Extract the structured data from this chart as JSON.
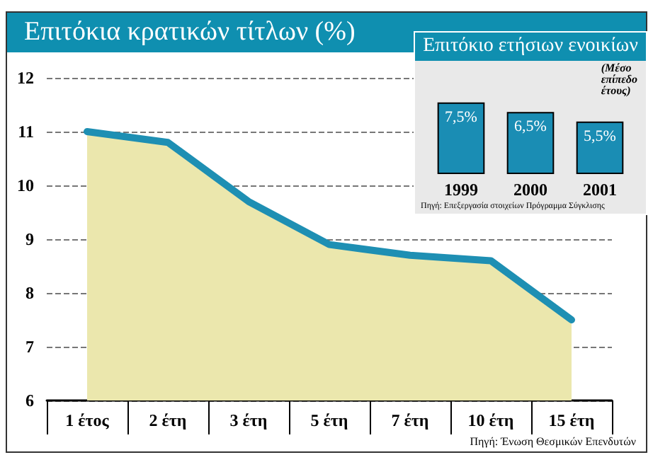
{
  "chart_data": [
    {
      "type": "area",
      "title": "Επιτόκια κρατικών τίτλων (%)",
      "categories": [
        "1 έτος",
        "2 έτη",
        "3 έτη",
        "5 έτη",
        "7 έτη",
        "10 έτη",
        "15 έτη"
      ],
      "series": [
        {
          "color": "#ebe7ad",
          "values": [
            11.0,
            10.8,
            9.7,
            8.9,
            8.7,
            8.6,
            7.5
          ]
        },
        {
          "type": "line",
          "color": "#1e8fb3",
          "values": [
            11.0,
            10.8,
            9.7,
            8.9,
            8.7,
            8.6,
            7.5
          ]
        }
      ],
      "ylim": [
        6,
        12
      ],
      "yticks": [
        6,
        7,
        8,
        9,
        10,
        11,
        12
      ],
      "grid": "y",
      "marker": "none",
      "line_style": "solid",
      "annotations": [
        "Πηγή: Ένωση Θεσμικών Επενδυτών"
      ]
    },
    {
      "type": "bar",
      "title": "Επιτόκιο ετήσιων ενοικίων",
      "subtitle": "(Μέσο επίπεδο έτους)",
      "categories": [
        "1999",
        "2000",
        "2001"
      ],
      "values": [
        7.5,
        6.5,
        5.5
      ],
      "color": "#1a8db4",
      "value_labels": [
        "7,5%",
        "6,5%",
        "5,5%"
      ],
      "tick_labels": "x",
      "annotations": [
        "Πηγή: Επεξεργασία στοιχείων Πρόγραμμα Σύγκλισης"
      ]
    }
  ]
}
